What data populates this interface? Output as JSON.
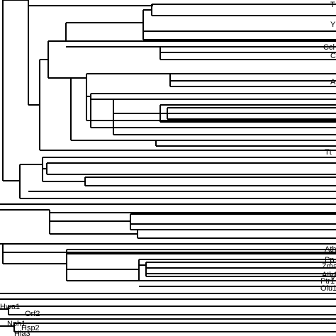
{
  "tree": {
    "line_color": "#000000",
    "background": "#ffffff",
    "leaf_labels": [
      "T",
      "Y",
      "Ccl",
      "C",
      "A",
      "Tt",
      "Ath",
      "Pp",
      "Zma",
      "Ath1",
      "V",
      "Ptr1",
      "Olu1",
      "Hwa1",
      "Orf2",
      "Nph1",
      "Hsp2",
      "Hla3"
    ]
  }
}
